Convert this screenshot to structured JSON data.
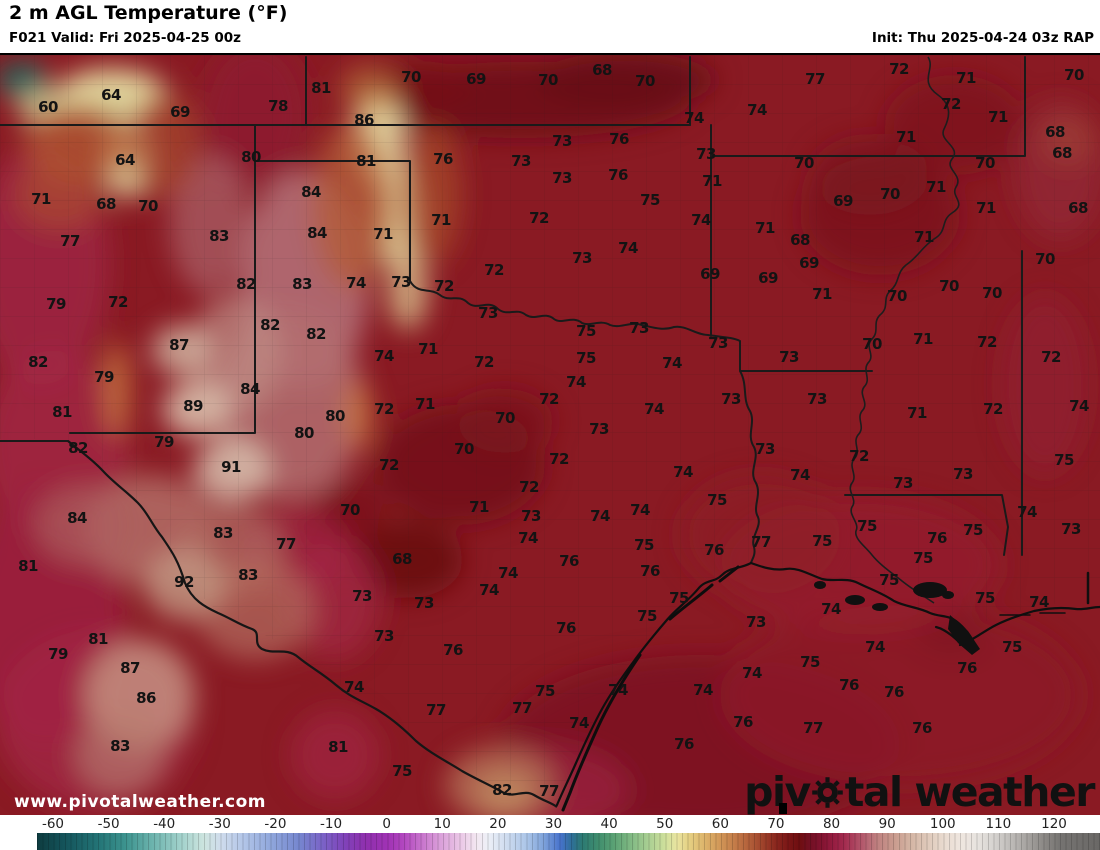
{
  "header": {
    "title": "2 m AGL Temperature (°F)",
    "forecast": "F021 Valid: Fri 2025-04-25 00z",
    "init": "Init: Thu 2025-04-24 03z RAP"
  },
  "watermark": "www.pivotalweather.com",
  "logo": {
    "pre": "piv",
    "post": "tal weather"
  },
  "colors": {
    "header_bg": "#ffffff",
    "map_base": "#8a1a23",
    "label": "#131313",
    "logo": "#111111",
    "watermark": "#ffffff",
    "border_line": "#1a1a1a"
  },
  "colorbar": {
    "ticks": [
      -60,
      -50,
      -40,
      -30,
      -20,
      -10,
      0,
      10,
      20,
      30,
      40,
      50,
      60,
      70,
      80,
      90,
      100,
      110,
      120
    ],
    "range": [
      -63,
      128
    ],
    "gradient": [
      [
        -63,
        "#0e3c40"
      ],
      [
        -58,
        "#14545b"
      ],
      [
        -52,
        "#237476"
      ],
      [
        -47,
        "#3d948f"
      ],
      [
        -42,
        "#6fb5af"
      ],
      [
        -37,
        "#a3d2cc"
      ],
      [
        -33,
        "#cde4df"
      ],
      [
        -30,
        "#cfdcec"
      ],
      [
        -26,
        "#b3c6e8"
      ],
      [
        -21,
        "#90a7dc"
      ],
      [
        -16,
        "#7687cf"
      ],
      [
        -12,
        "#7a66c8"
      ],
      [
        -8,
        "#7f44ba"
      ],
      [
        -4,
        "#8f30ae"
      ],
      [
        0,
        "#a032b4"
      ],
      [
        3,
        "#b348c0"
      ],
      [
        6,
        "#c772cc"
      ],
      [
        9,
        "#d89ad8"
      ],
      [
        13,
        "#eac6e6"
      ],
      [
        16,
        "#f3e7f1"
      ],
      [
        18,
        "#edf0f7"
      ],
      [
        21,
        "#d2def0"
      ],
      [
        25,
        "#abc5e8"
      ],
      [
        28,
        "#7fa3da"
      ],
      [
        31,
        "#4873cd"
      ],
      [
        33,
        "#2f6f9a"
      ],
      [
        35,
        "#2c7a72"
      ],
      [
        38,
        "#418f6e"
      ],
      [
        41,
        "#5ea475"
      ],
      [
        44,
        "#84bb85"
      ],
      [
        47,
        "#abd093"
      ],
      [
        50,
        "#d0e09c"
      ],
      [
        52,
        "#e9e4a0"
      ],
      [
        54,
        "#e5d184"
      ],
      [
        57,
        "#ddb36a"
      ],
      [
        60,
        "#d09456"
      ],
      [
        63,
        "#c07545"
      ],
      [
        66,
        "#ab5434"
      ],
      [
        68,
        "#993b27"
      ],
      [
        70,
        "#88251d"
      ],
      [
        72,
        "#7a1616"
      ],
      [
        74,
        "#6f0e11"
      ],
      [
        76,
        "#731024"
      ],
      [
        78,
        "#821330"
      ],
      [
        80,
        "#951c40"
      ],
      [
        82,
        "#a22a4e"
      ],
      [
        84,
        "#ad4560"
      ],
      [
        86,
        "#b66372"
      ],
      [
        88,
        "#bf8180"
      ],
      [
        91,
        "#c99b8e"
      ],
      [
        94,
        "#d4b5a4"
      ],
      [
        97,
        "#dfc9ba"
      ],
      [
        100,
        "#e9dbd0"
      ],
      [
        103,
        "#efe6df"
      ],
      [
        106,
        "#e7e3df"
      ],
      [
        109,
        "#d5d2cf"
      ],
      [
        112,
        "#bebbb8"
      ],
      [
        115,
        "#a5a29f"
      ],
      [
        118,
        "#8b8885"
      ],
      [
        121,
        "#757371"
      ],
      [
        128,
        "#6a6866"
      ]
    ]
  },
  "map": {
    "temps": [
      [
        60,
        48,
        107
      ],
      [
        64,
        111,
        95
      ],
      [
        69,
        180,
        112
      ],
      [
        78,
        278,
        106
      ],
      [
        81,
        321,
        88
      ],
      [
        86,
        364,
        120
      ],
      [
        70,
        411,
        77
      ],
      [
        69,
        476,
        79
      ],
      [
        70,
        548,
        80
      ],
      [
        68,
        602,
        70
      ],
      [
        70,
        645,
        81
      ],
      [
        74,
        694,
        118
      ],
      [
        77,
        815,
        79
      ],
      [
        72,
        899,
        69
      ],
      [
        71,
        966,
        78
      ],
      [
        70,
        1074,
        75
      ],
      [
        74,
        757,
        110
      ],
      [
        72,
        951,
        104
      ],
      [
        71,
        998,
        117
      ],
      [
        68,
        1055,
        132
      ],
      [
        64,
        125,
        160
      ],
      [
        80,
        251,
        157
      ],
      [
        81,
        366,
        161
      ],
      [
        84,
        311,
        192
      ],
      [
        73,
        562,
        141
      ],
      [
        76,
        619,
        139
      ],
      [
        76,
        443,
        159
      ],
      [
        73,
        521,
        161
      ],
      [
        73,
        706,
        154
      ],
      [
        73,
        562,
        178
      ],
      [
        76,
        618,
        175
      ],
      [
        71,
        712,
        181
      ],
      [
        75,
        650,
        200
      ],
      [
        71,
        906,
        137
      ],
      [
        68,
        1062,
        153
      ],
      [
        70,
        804,
        163
      ],
      [
        70,
        985,
        163
      ],
      [
        70,
        890,
        194
      ],
      [
        69,
        843,
        201
      ],
      [
        71,
        936,
        187
      ],
      [
        71,
        41,
        199
      ],
      [
        68,
        106,
        204
      ],
      [
        70,
        148,
        206
      ],
      [
        77,
        70,
        241
      ],
      [
        83,
        219,
        236
      ],
      [
        84,
        317,
        233
      ],
      [
        71,
        441,
        220
      ],
      [
        72,
        539,
        218
      ],
      [
        74,
        701,
        220
      ],
      [
        71,
        383,
        234
      ],
      [
        74,
        628,
        248
      ],
      [
        71,
        986,
        208
      ],
      [
        68,
        1078,
        208
      ],
      [
        71,
        765,
        228
      ],
      [
        68,
        800,
        240
      ],
      [
        71,
        924,
        237
      ],
      [
        73,
        582,
        258
      ],
      [
        70,
        1045,
        259
      ],
      [
        69,
        809,
        263
      ],
      [
        79,
        56,
        304
      ],
      [
        72,
        118,
        302
      ],
      [
        82,
        246,
        284
      ],
      [
        83,
        302,
        284
      ],
      [
        74,
        356,
        283
      ],
      [
        82,
        270,
        325
      ],
      [
        82,
        316,
        334
      ],
      [
        87,
        179,
        345
      ],
      [
        72,
        494,
        270
      ],
      [
        69,
        710,
        274
      ],
      [
        73,
        401,
        282
      ],
      [
        72,
        444,
        286
      ],
      [
        73,
        488,
        313
      ],
      [
        75,
        586,
        331
      ],
      [
        73,
        639,
        328
      ],
      [
        73,
        718,
        343
      ],
      [
        69,
        768,
        278
      ],
      [
        71,
        822,
        294
      ],
      [
        70,
        897,
        296
      ],
      [
        70,
        949,
        286
      ],
      [
        70,
        992,
        293
      ],
      [
        70,
        872,
        344
      ],
      [
        71,
        923,
        339
      ],
      [
        72,
        987,
        342
      ],
      [
        82,
        38,
        362
      ],
      [
        79,
        104,
        377
      ],
      [
        84,
        250,
        389
      ],
      [
        81,
        62,
        412
      ],
      [
        89,
        193,
        406
      ],
      [
        80,
        335,
        416
      ],
      [
        71,
        428,
        349
      ],
      [
        74,
        384,
        356
      ],
      [
        72,
        484,
        362
      ],
      [
        75,
        586,
        358
      ],
      [
        74,
        672,
        363
      ],
      [
        74,
        576,
        382
      ],
      [
        72,
        549,
        399
      ],
      [
        74,
        654,
        409
      ],
      [
        71,
        425,
        404
      ],
      [
        72,
        384,
        409
      ],
      [
        70,
        505,
        418
      ],
      [
        73,
        731,
        399
      ],
      [
        72,
        1051,
        357
      ],
      [
        73,
        789,
        357
      ],
      [
        73,
        817,
        399
      ],
      [
        71,
        917,
        413
      ],
      [
        72,
        993,
        409
      ],
      [
        74,
        1079,
        406
      ],
      [
        80,
        304,
        433
      ],
      [
        79,
        164,
        442
      ],
      [
        82,
        78,
        448
      ],
      [
        91,
        231,
        467
      ],
      [
        70,
        464,
        449
      ],
      [
        72,
        389,
        465
      ],
      [
        72,
        559,
        459
      ],
      [
        74,
        683,
        472
      ],
      [
        73,
        599,
        429
      ],
      [
        73,
        765,
        449
      ],
      [
        72,
        859,
        456
      ],
      [
        74,
        800,
        475
      ],
      [
        73,
        963,
        474
      ],
      [
        75,
        1064,
        460
      ],
      [
        84,
        77,
        518
      ],
      [
        70,
        350,
        510
      ],
      [
        83,
        223,
        533
      ],
      [
        77,
        286,
        544
      ],
      [
        72,
        529,
        487
      ],
      [
        75,
        717,
        500
      ],
      [
        71,
        479,
        507
      ],
      [
        74,
        640,
        510
      ],
      [
        73,
        531,
        516
      ],
      [
        74,
        600,
        516
      ],
      [
        74,
        528,
        538
      ],
      [
        75,
        644,
        545
      ],
      [
        76,
        714,
        550
      ],
      [
        68,
        402,
        559
      ],
      [
        73,
        903,
        483
      ],
      [
        74,
        1027,
        512
      ],
      [
        73,
        1071,
        529
      ],
      [
        75,
        867,
        526
      ],
      [
        75,
        973,
        530
      ],
      [
        76,
        937,
        538
      ],
      [
        77,
        761,
        542
      ],
      [
        75,
        822,
        541
      ],
      [
        75,
        923,
        558
      ],
      [
        81,
        28,
        566
      ],
      [
        83,
        248,
        575
      ],
      [
        92,
        184,
        582
      ],
      [
        73,
        362,
        596
      ],
      [
        76,
        569,
        561
      ],
      [
        76,
        650,
        571
      ],
      [
        74,
        508,
        573
      ],
      [
        74,
        489,
        590
      ],
      [
        75,
        679,
        598
      ],
      [
        73,
        424,
        603
      ],
      [
        75,
        647,
        616
      ],
      [
        76,
        566,
        628
      ],
      [
        75,
        889,
        580
      ],
      [
        75,
        985,
        598
      ],
      [
        74,
        1039,
        602
      ],
      [
        74,
        831,
        609
      ],
      [
        73,
        756,
        622
      ],
      [
        81,
        98,
        639
      ],
      [
        79,
        58,
        654
      ],
      [
        73,
        384,
        636
      ],
      [
        87,
        130,
        668
      ],
      [
        74,
        354,
        687
      ],
      [
        86,
        146,
        698
      ],
      [
        76,
        453,
        650
      ],
      [
        75,
        545,
        691
      ],
      [
        74,
        618,
        690
      ],
      [
        74,
        703,
        690
      ],
      [
        74,
        875,
        647
      ],
      [
        75,
        1012,
        647
      ],
      [
        75,
        810,
        662
      ],
      [
        76,
        967,
        668
      ],
      [
        74,
        752,
        673
      ],
      [
        76,
        849,
        685
      ],
      [
        76,
        894,
        692
      ],
      [
        83,
        120,
        746
      ],
      [
        81,
        338,
        747
      ],
      [
        77,
        436,
        710
      ],
      [
        77,
        522,
        708
      ],
      [
        74,
        579,
        723
      ],
      [
        76,
        684,
        744
      ],
      [
        75,
        402,
        771
      ],
      [
        82,
        502,
        790
      ],
      [
        77,
        549,
        791
      ],
      [
        76,
        743,
        722
      ],
      [
        77,
        813,
        728
      ],
      [
        76,
        922,
        728
      ]
    ]
  }
}
